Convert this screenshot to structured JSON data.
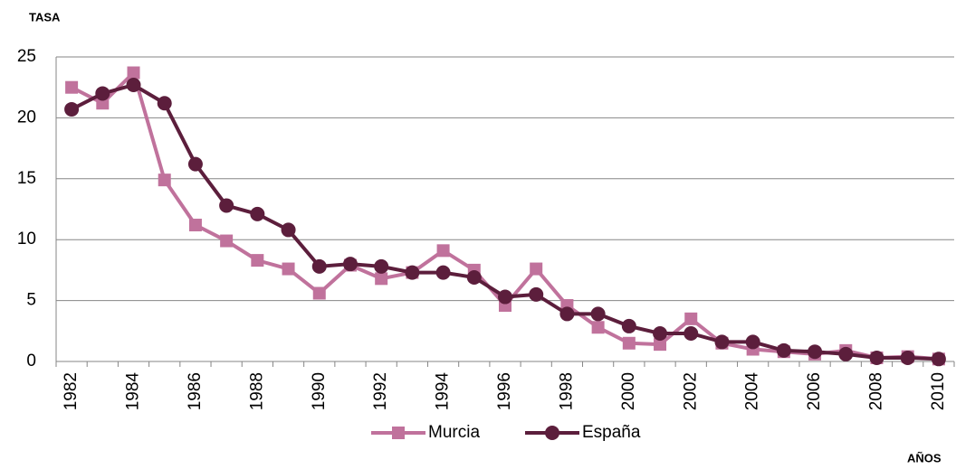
{
  "chart_data": {
    "type": "line",
    "y_label": "TASA",
    "x_label": "AÑOS",
    "categories": [
      "1982",
      null,
      "1984",
      null,
      "1986",
      null,
      "1988",
      null,
      "1990",
      null,
      "1992",
      null,
      "1994",
      null,
      "1996",
      null,
      "1998",
      null,
      "2000",
      null,
      "2002",
      null,
      "2004",
      null,
      "2006",
      null,
      "2008",
      null,
      "2010"
    ],
    "series": [
      {
        "name": "Murcia",
        "color": "#c0729c",
        "marker": "square",
        "values": [
          22.5,
          21.2,
          23.7,
          14.9,
          11.2,
          9.9,
          8.3,
          7.6,
          5.6,
          7.9,
          6.8,
          7.3,
          9.1,
          7.5,
          4.6,
          7.6,
          4.6,
          2.8,
          1.5,
          1.4,
          3.5,
          1.5,
          1.0,
          0.8,
          0.6,
          0.9,
          0.3,
          0.4,
          0.2
        ]
      },
      {
        "name": "España",
        "color": "#5c1e3c",
        "marker": "circle",
        "values": [
          20.7,
          22.0,
          22.7,
          21.2,
          16.2,
          12.8,
          12.1,
          10.8,
          7.8,
          8.0,
          7.8,
          7.3,
          7.3,
          6.9,
          5.3,
          5.5,
          3.9,
          3.9,
          2.9,
          2.3,
          2.3,
          1.6,
          1.6,
          0.9,
          0.8,
          0.6,
          0.3,
          0.3,
          0.2
        ]
      }
    ],
    "ylim": [
      0,
      25
    ],
    "yticks": [
      0,
      5,
      10,
      15,
      20,
      25
    ],
    "grid": true,
    "legend": "bottom"
  }
}
